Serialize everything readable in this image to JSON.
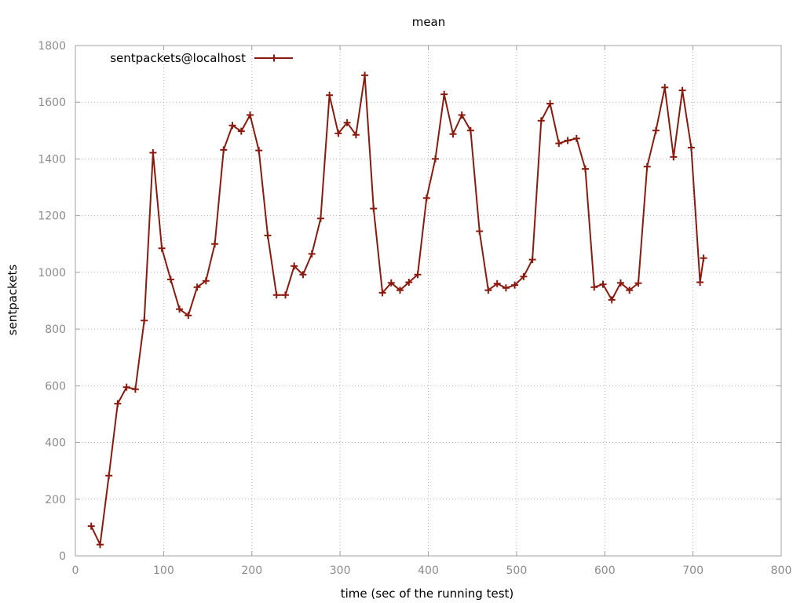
{
  "chart_data": {
    "type": "line",
    "title": "mean",
    "xlabel": "time (sec of the running test)",
    "ylabel": "sentpackets",
    "xlim": [
      0,
      800
    ],
    "ylim": [
      0,
      1800
    ],
    "xticks": [
      0,
      100,
      200,
      300,
      400,
      500,
      600,
      700,
      800
    ],
    "yticks": [
      0,
      200,
      400,
      600,
      800,
      1000,
      1200,
      1400,
      1600,
      1800
    ],
    "grid": true,
    "legend_position": "top-left",
    "series": [
      {
        "name": "sentpackets@localhost",
        "color": "#8b1a0e",
        "marker": "plus",
        "x": [
          18,
          28,
          38,
          48,
          58,
          68,
          78,
          88,
          98,
          108,
          118,
          128,
          138,
          148,
          158,
          168,
          178,
          188,
          198,
          208,
          218,
          228,
          238,
          248,
          258,
          268,
          278,
          288,
          298,
          308,
          318,
          328,
          338,
          348,
          358,
          368,
          378,
          388,
          398,
          408,
          418,
          428,
          438,
          448,
          458,
          468,
          478,
          488,
          498,
          508,
          518,
          528,
          538,
          548,
          558,
          568,
          578,
          588,
          598,
          608,
          618,
          628,
          638,
          648,
          658,
          668,
          678,
          688,
          698,
          708,
          712
        ],
        "y": [
          105,
          40,
          283,
          537,
          595,
          588,
          830,
          1422,
          1085,
          975,
          870,
          848,
          948,
          970,
          1100,
          1432,
          1518,
          1498,
          1555,
          1430,
          1130,
          920,
          920,
          1022,
          992,
          1065,
          1190,
          1625,
          1490,
          1528,
          1485,
          1695,
          1225,
          928,
          963,
          937,
          965,
          992,
          1262,
          1400,
          1628,
          1488,
          1555,
          1500,
          1145,
          937,
          960,
          945,
          955,
          985,
          1045,
          1535,
          1595,
          1455,
          1465,
          1472,
          1365,
          948,
          958,
          903,
          963,
          937,
          962,
          1373,
          1500,
          1652,
          1407,
          1642,
          1440,
          965,
          1050
        ]
      }
    ]
  }
}
